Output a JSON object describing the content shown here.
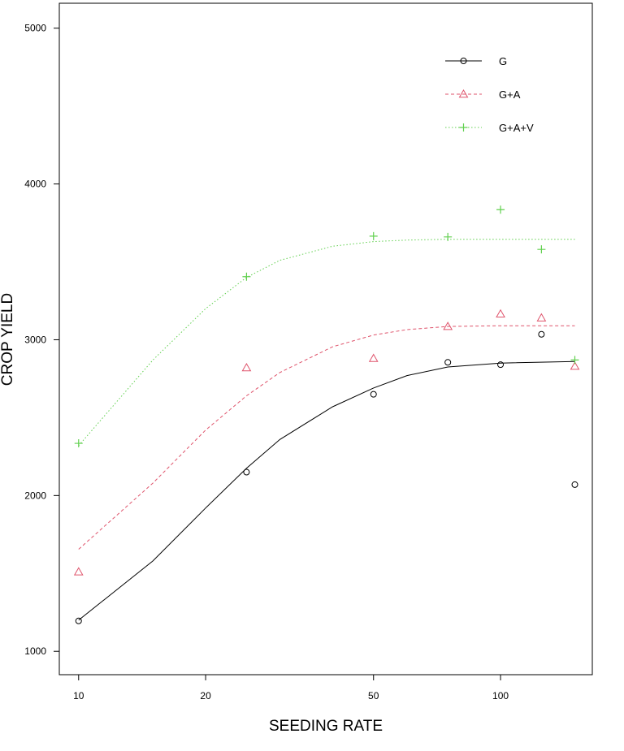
{
  "chart_data": {
    "type": "scatter",
    "title": "",
    "xlabel": "SEEDING RATE",
    "ylabel": "CROP YIELD",
    "x_scale": "log",
    "xlim": [
      9,
      165
    ],
    "ylim": [
      850,
      5160
    ],
    "x_ticks": [
      10,
      20,
      50,
      100
    ],
    "y_ticks": [
      1000,
      2000,
      3000,
      4000,
      5000
    ],
    "grid": false,
    "legend_position": "top-right",
    "series": [
      {
        "name": "G",
        "color": "#000000",
        "marker": "circle",
        "line_style": "solid",
        "points": [
          [
            10,
            1195
          ],
          [
            25,
            2150
          ],
          [
            50,
            2650
          ],
          [
            75,
            2855
          ],
          [
            100,
            2840
          ],
          [
            125,
            3035
          ],
          [
            150,
            2070
          ]
        ],
        "fit": [
          [
            10,
            1200
          ],
          [
            15,
            1580
          ],
          [
            20,
            1920
          ],
          [
            25,
            2175
          ],
          [
            30,
            2360
          ],
          [
            40,
            2570
          ],
          [
            50,
            2690
          ],
          [
            60,
            2770
          ],
          [
            75,
            2825
          ],
          [
            100,
            2850
          ],
          [
            150,
            2860
          ]
        ]
      },
      {
        "name": "G+A",
        "color": "#df536b",
        "marker": "triangle",
        "line_style": "dashed",
        "points": [
          [
            10,
            1510
          ],
          [
            25,
            2820
          ],
          [
            50,
            2880
          ],
          [
            75,
            3085
          ],
          [
            100,
            3165
          ],
          [
            125,
            3140
          ],
          [
            150,
            2830
          ]
        ],
        "fit": [
          [
            10,
            1655
          ],
          [
            15,
            2080
          ],
          [
            20,
            2420
          ],
          [
            25,
            2640
          ],
          [
            30,
            2790
          ],
          [
            40,
            2955
          ],
          [
            50,
            3030
          ],
          [
            60,
            3065
          ],
          [
            75,
            3085
          ],
          [
            100,
            3090
          ],
          [
            150,
            3090
          ]
        ]
      },
      {
        "name": "G+A+V",
        "color": "#61d04f",
        "marker": "plus",
        "line_style": "dotted",
        "points": [
          [
            10,
            2335
          ],
          [
            25,
            3405
          ],
          [
            50,
            3665
          ],
          [
            75,
            3660
          ],
          [
            100,
            3835
          ],
          [
            125,
            3580
          ],
          [
            150,
            2870
          ]
        ],
        "fit": [
          [
            10,
            2320
          ],
          [
            15,
            2870
          ],
          [
            20,
            3200
          ],
          [
            25,
            3400
          ],
          [
            30,
            3510
          ],
          [
            40,
            3600
          ],
          [
            50,
            3630
          ],
          [
            60,
            3640
          ],
          [
            75,
            3645
          ],
          [
            100,
            3645
          ],
          [
            150,
            3645
          ]
        ]
      }
    ]
  }
}
